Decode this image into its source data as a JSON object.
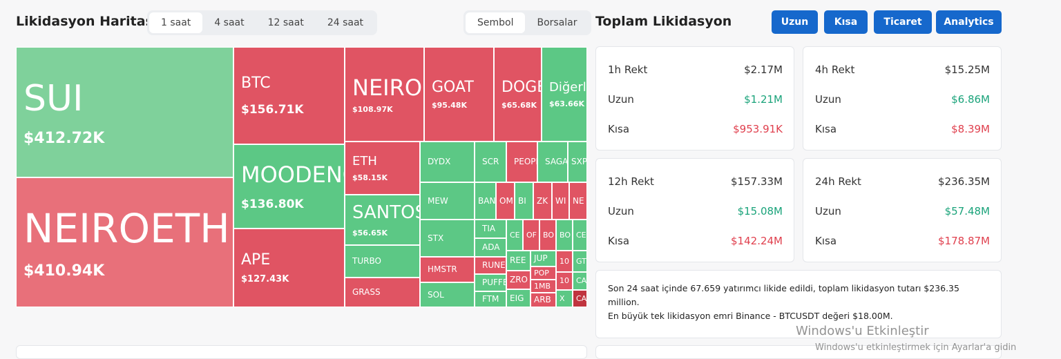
{
  "header": {
    "title": "Likidasyon Haritası",
    "tabs": [
      "1 saat",
      "4 saat",
      "12 saat",
      "24 saat"
    ],
    "views": [
      "Sembol",
      "Borsalar"
    ]
  },
  "treemap": {
    "tiles": [
      {
        "label": "SUI",
        "value": "$412.72K"
      },
      {
        "label": "NEIROETH",
        "value": "$410.94K"
      },
      {
        "label": "BTC",
        "value": "$156.71K"
      },
      {
        "label": "MOODENG",
        "value": "$136.80K"
      },
      {
        "label": "APE",
        "value": "$127.43K"
      },
      {
        "label": "NEIRO",
        "value": "$108.97K"
      },
      {
        "label": "GOAT",
        "value": "$95.48K"
      },
      {
        "label": "DOGE",
        "value": "$65.68K"
      },
      {
        "label": "Diğerleri",
        "value": "$63.66K"
      },
      {
        "label": "ETH",
        "value": "$58.15K"
      },
      {
        "label": "SANTOS",
        "value": "$56.65K"
      },
      {
        "label": "TURBO"
      },
      {
        "label": "GRASS"
      },
      {
        "label": "DYDX"
      },
      {
        "label": "SCR"
      },
      {
        "label": "PEOPLE"
      },
      {
        "label": "SAGA"
      },
      {
        "label": "SXP"
      },
      {
        "label": "MEW"
      },
      {
        "label": "BAN"
      },
      {
        "label": "OM"
      },
      {
        "label": "BI"
      },
      {
        "label": "ZK"
      },
      {
        "label": "WI"
      },
      {
        "label": "NE"
      },
      {
        "label": "STX"
      },
      {
        "label": "TIA"
      },
      {
        "label": "ADA"
      },
      {
        "label": "CE"
      },
      {
        "label": "OF"
      },
      {
        "label": "BO"
      },
      {
        "label": "BO"
      },
      {
        "label": "CE"
      },
      {
        "label": "HMSTR"
      },
      {
        "label": "SOL"
      },
      {
        "label": "RUNE"
      },
      {
        "label": "PUFFER"
      },
      {
        "label": "FTM"
      },
      {
        "label": "REE"
      },
      {
        "label": "ZRO"
      },
      {
        "label": "EIG"
      },
      {
        "label": "JUP"
      },
      {
        "label": "POP"
      },
      {
        "label": "1MB"
      },
      {
        "label": "ARB"
      },
      {
        "label": "10"
      },
      {
        "label": "10"
      },
      {
        "label": "X"
      },
      {
        "label": "GT"
      },
      {
        "label": "CA"
      },
      {
        "label": "CA"
      }
    ]
  },
  "panel": {
    "title": "Toplam Likidasyon",
    "buttons": [
      "Uzun",
      "Kısa",
      "Ticaret",
      "Analytics"
    ],
    "cards": [
      {
        "title": "1h Rekt",
        "total": "$2.17M",
        "long_label": "Uzun",
        "long": "$1.21M",
        "short_label": "Kısa",
        "short": "$953.91K"
      },
      {
        "title": "4h Rekt",
        "total": "$15.25M",
        "long_label": "Uzun",
        "long": "$6.86M",
        "short_label": "Kısa",
        "short": "$8.39M"
      },
      {
        "title": "12h Rekt",
        "total": "$157.33M",
        "long_label": "Uzun",
        "long": "$15.08M",
        "short_label": "Kısa",
        "short": "$142.24M"
      },
      {
        "title": "24h Rekt",
        "total": "$236.35M",
        "long_label": "Uzun",
        "long": "$57.48M",
        "short_label": "Kısa",
        "short": "$178.87M"
      }
    ],
    "summary": [
      "Son 24 saat içinde 67.659 yatırımcı likide edildi, toplam likidasyon tutarı $236.35 million.",
      "En büyük tek likidasyon emri Binance - BTCUSDT değeri $18.00M."
    ]
  },
  "watermark": [
    "Windows'u Etkinleştir",
    "Windows'u etkinleştirmek için Ayarlar'a gidin"
  ]
}
